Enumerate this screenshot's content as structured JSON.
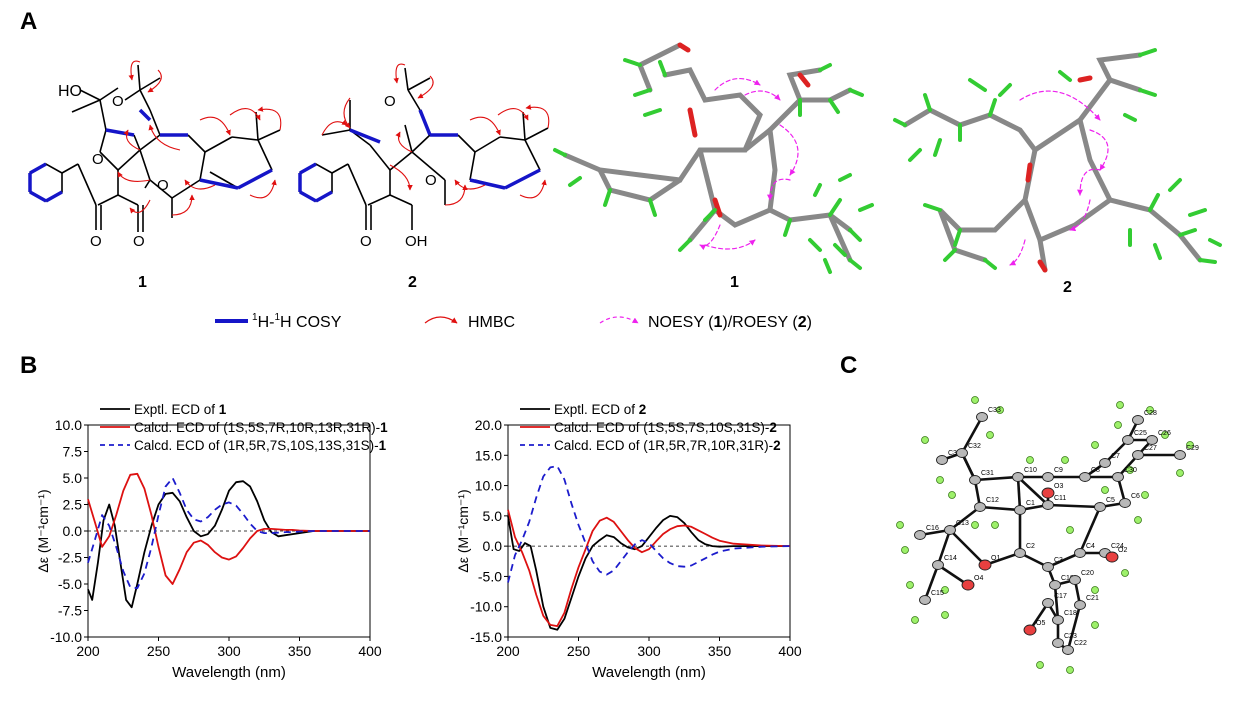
{
  "panel_labels": {
    "a": "A",
    "b": "B",
    "c": "C"
  },
  "structures": {
    "compound1_label": "1",
    "compound2_label": "2",
    "model1_label": "1",
    "model2_label": "2",
    "atom_labels": {
      "ho": "HO",
      "o": "O",
      "oh": "OH"
    }
  },
  "top_legend": {
    "cosy_sup1": "1",
    "cosy_h1": "H-",
    "cosy_sup2": "1",
    "cosy_h2": "H COSY",
    "hmbc": "HMBC",
    "noesy_pre": "NOESY (",
    "noesy_num1": "1",
    "noesy_mid": ")/ROESY (",
    "noesy_num2": "2",
    "noesy_post": ")"
  },
  "colors": {
    "cosy": "#1515c8",
    "hmbc": "#e01010",
    "noesy": "#ee22ee",
    "exptl": "#000000",
    "calcd": "#dd1111",
    "calcd_enant": "#1c1ccc",
    "carbon": "#888888",
    "hydrogen": "#33cc33",
    "oxygen": "#dd2222"
  },
  "xray_labels": [
    "C34",
    "C33",
    "C32",
    "C31",
    "C10",
    "C9",
    "C8",
    "C7",
    "C28",
    "C25",
    "C26",
    "C27",
    "C29",
    "C30",
    "C6",
    "C5",
    "C11",
    "C1",
    "C12",
    "C13",
    "C16",
    "C14",
    "O3",
    "O1",
    "O4",
    "C15",
    "C2",
    "C3",
    "C4",
    "C24",
    "O2",
    "C19",
    "C20",
    "C17",
    "C18",
    "C21",
    "O5",
    "C23",
    "C22"
  ],
  "chart_data": [
    {
      "type": "line",
      "xlabel": "Wavelength (nm)",
      "ylabel": "Δε (M⁻¹cm⁻¹)",
      "xlim": [
        200,
        400
      ],
      "ylim": [
        -10,
        10
      ],
      "xticks": [
        "200",
        "250",
        "300",
        "350",
        "400"
      ],
      "yticks": [
        "10.0",
        "7.5",
        "5.0",
        "2.5",
        "0.0",
        "-2.5",
        "-5.0",
        "-7.5",
        "-10.0"
      ],
      "legend": [
        {
          "pre": "Exptl. ECD of ",
          "bold": "1",
          "post": ""
        },
        {
          "pre": "Calcd. ECD of (1S,5S,7R,10R,13R,31R)-",
          "bold": "1",
          "post": ""
        },
        {
          "pre": "Calcd. ECD of (1R,5R,7S,10S,13S,31S)-",
          "bold": "1",
          "post": ""
        }
      ],
      "series": [
        {
          "name": "Exptl. ECD of 1",
          "style": "solid-black",
          "x": [
            200,
            203,
            207,
            211,
            215,
            219,
            223,
            227,
            231,
            235,
            240,
            245,
            250,
            255,
            260,
            265,
            270,
            275,
            280,
            285,
            290,
            295,
            300,
            305,
            310,
            315,
            320,
            325,
            330,
            335,
            340,
            350,
            360,
            380,
            400
          ],
          "y": [
            -5.5,
            -6.5,
            -3.0,
            1.0,
            2.5,
            0.5,
            -3.0,
            -6.5,
            -7.2,
            -5.0,
            -2.0,
            0.5,
            2.5,
            3.5,
            3.6,
            2.8,
            1.3,
            0.0,
            -0.5,
            -0.3,
            0.5,
            2.0,
            3.8,
            4.6,
            4.7,
            4.2,
            2.8,
            1.0,
            -0.1,
            -0.5,
            -0.4,
            -0.2,
            0.0,
            0.0,
            0.0
          ]
        },
        {
          "name": "Calcd. ECD of (1S,5S,7R,10R,13R,31R)-1",
          "style": "solid-red",
          "x": [
            200,
            205,
            210,
            215,
            220,
            225,
            230,
            235,
            240,
            245,
            250,
            255,
            260,
            265,
            270,
            275,
            280,
            285,
            290,
            295,
            300,
            305,
            310,
            315,
            320,
            325,
            330,
            335,
            340,
            345,
            350,
            360,
            380,
            400
          ],
          "y": [
            3.0,
            0.8,
            -1.5,
            -0.5,
            1.5,
            3.8,
            5.3,
            5.4,
            4.0,
            1.5,
            -1.5,
            -4.2,
            -5.0,
            -3.6,
            -2.0,
            -1.1,
            -0.9,
            -1.3,
            -2.0,
            -2.5,
            -2.7,
            -2.4,
            -1.6,
            -0.7,
            0.0,
            0.2,
            0.2,
            0.15,
            0.1,
            0.1,
            0.05,
            0.0,
            0.0,
            0.0
          ]
        },
        {
          "name": "Calcd. ECD of (1R,5R,7S,10S,13S,31S)-1",
          "style": "dashed-blue",
          "x": [
            200,
            205,
            210,
            215,
            220,
            225,
            230,
            235,
            240,
            245,
            250,
            255,
            260,
            265,
            270,
            275,
            280,
            285,
            290,
            295,
            300,
            305,
            310,
            315,
            320,
            325,
            330,
            335,
            340,
            345,
            350,
            360,
            380,
            400
          ],
          "y": [
            -3.0,
            -0.8,
            1.5,
            0.5,
            -1.5,
            -3.8,
            -5.3,
            -5.4,
            -4.0,
            -1.5,
            1.5,
            4.2,
            5.0,
            3.6,
            2.0,
            1.1,
            0.9,
            1.3,
            2.0,
            2.5,
            2.7,
            2.4,
            1.6,
            0.7,
            0.0,
            -0.2,
            -0.2,
            -0.15,
            -0.1,
            -0.1,
            -0.05,
            0.0,
            0.0,
            0.0
          ]
        }
      ]
    },
    {
      "type": "line",
      "xlabel": "Wavelength (nm)",
      "ylabel": "Δε (M⁻¹cm⁻¹)",
      "xlim": [
        200,
        400
      ],
      "ylim": [
        -15,
        20
      ],
      "xticks": [
        "200",
        "250",
        "300",
        "350",
        "400"
      ],
      "yticks": [
        "20.0",
        "15.0",
        "10.0",
        "5.0",
        "0.0",
        "-5.0",
        "-10.0",
        "-15.0"
      ],
      "legend": [
        {
          "pre": "Exptl. ECD of ",
          "bold": "2",
          "post": ""
        },
        {
          "pre": "Calcd. ECD of (1S,5S,7S,10S,31S)-",
          "bold": "2",
          "post": ""
        },
        {
          "pre": "Calcd. ECD of (1R,5R,7R,10R,31R)-",
          "bold": "2",
          "post": ""
        }
      ],
      "series": [
        {
          "name": "Exptl. ECD of 2",
          "style": "solid-black",
          "x": [
            200,
            204,
            208,
            212,
            216,
            220,
            225,
            230,
            235,
            240,
            245,
            250,
            255,
            260,
            265,
            270,
            275,
            280,
            285,
            290,
            295,
            300,
            305,
            310,
            315,
            320,
            325,
            330,
            335,
            340,
            345,
            350,
            360,
            380,
            400
          ],
          "y": [
            5.0,
            -0.5,
            -0.8,
            0.5,
            0.0,
            -4.0,
            -10.0,
            -13.5,
            -13.8,
            -12.0,
            -8.5,
            -5.0,
            -2.0,
            0.0,
            1.0,
            1.8,
            1.5,
            0.5,
            -0.2,
            -0.5,
            0.0,
            1.5,
            3.0,
            4.3,
            5.0,
            4.8,
            3.8,
            2.3,
            1.0,
            0.3,
            0.0,
            -0.1,
            0.0,
            0.0,
            0.0
          ]
        },
        {
          "name": "Calcd. ECD of (1S,5S,7S,10S,31S)-2",
          "style": "solid-red",
          "x": [
            200,
            205,
            210,
            215,
            220,
            225,
            230,
            235,
            240,
            245,
            250,
            255,
            260,
            265,
            270,
            275,
            280,
            285,
            290,
            295,
            300,
            305,
            310,
            315,
            320,
            325,
            330,
            335,
            340,
            345,
            350,
            360,
            380,
            400
          ],
          "y": [
            6.0,
            1.5,
            -1.0,
            -4.0,
            -8.0,
            -11.5,
            -13.0,
            -13.2,
            -11.0,
            -7.0,
            -3.5,
            -0.5,
            2.5,
            4.2,
            4.7,
            4.0,
            2.5,
            1.0,
            -0.3,
            -1.0,
            -0.5,
            0.8,
            2.0,
            2.8,
            3.3,
            3.4,
            3.2,
            2.6,
            2.0,
            1.4,
            0.9,
            0.4,
            0.1,
            0.0
          ]
        },
        {
          "name": "Calcd. ECD of (1R,5R,7R,10R,31R)-2",
          "style": "dashed-blue",
          "x": [
            200,
            205,
            210,
            215,
            220,
            225,
            230,
            235,
            240,
            245,
            250,
            255,
            260,
            265,
            270,
            275,
            280,
            285,
            290,
            295,
            300,
            305,
            310,
            315,
            320,
            325,
            330,
            335,
            340,
            345,
            350,
            360,
            380,
            400
          ],
          "y": [
            -6.0,
            -1.5,
            1.0,
            4.0,
            8.0,
            11.5,
            13.0,
            13.2,
            11.0,
            7.0,
            3.5,
            0.5,
            -2.5,
            -4.2,
            -4.7,
            -4.0,
            -2.5,
            -1.0,
            0.3,
            1.0,
            0.5,
            -0.8,
            -2.0,
            -2.8,
            -3.3,
            -3.4,
            -3.2,
            -2.6,
            -2.0,
            -1.4,
            -0.9,
            -0.4,
            -0.1,
            0.0
          ]
        }
      ]
    }
  ]
}
